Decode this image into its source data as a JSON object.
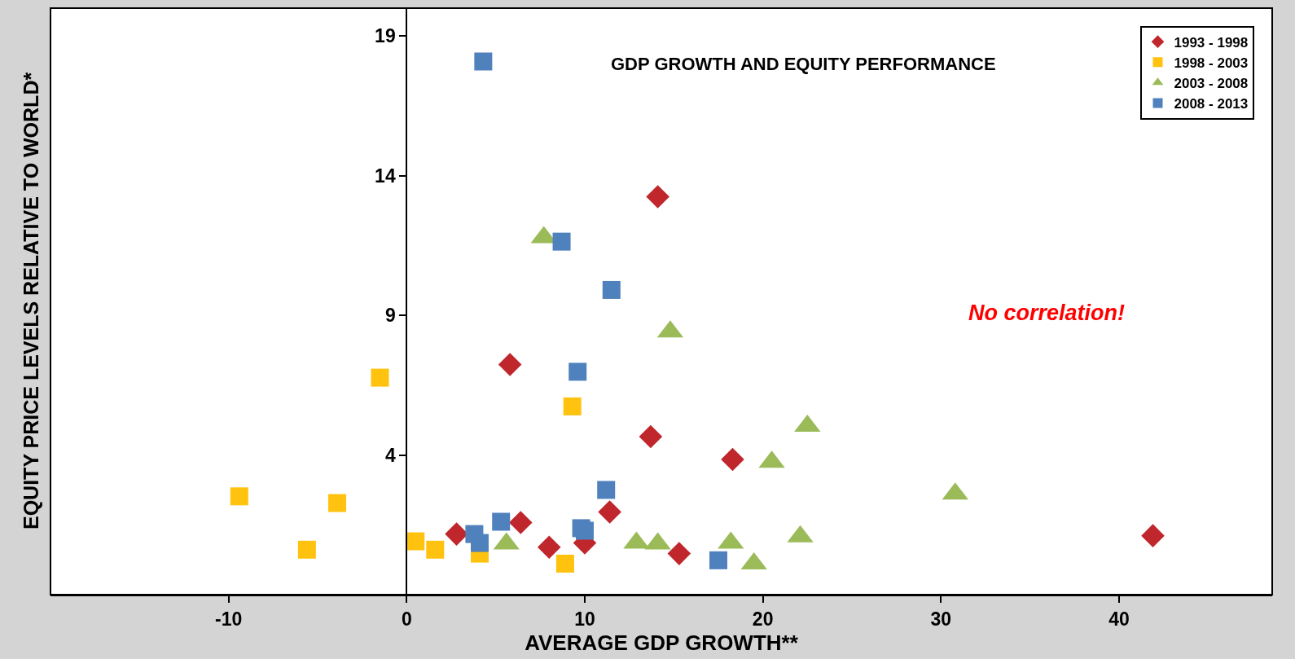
{
  "chart_data": {
    "type": "scatter",
    "title": "GDP GROWTH AND EQUITY PERFORMANCE",
    "xlabel": "AVERAGE GDP GROWTH**",
    "ylabel": "EQUITY PRICE LEVELS RELATIVE TO WORLD*",
    "xlim": [
      -20,
      48.6
    ],
    "ylim": [
      -1,
      20
    ],
    "xticks": [
      -10,
      0,
      10,
      20,
      30,
      40
    ],
    "yticks": [
      4,
      9,
      14,
      19
    ],
    "legend": "top right",
    "annotations": [
      "No correlation!"
    ],
    "series": [
      {
        "name": "1993 - 1998",
        "color": "#c0272d",
        "marker": "diamond",
        "x": [
          14.1,
          5.8,
          13.7,
          18.3,
          11.4,
          6.4,
          2.8,
          8.0,
          10.0,
          15.3,
          41.9
        ],
        "values": [
          13.25,
          7.24,
          4.66,
          3.84,
          1.96,
          1.58,
          1.17,
          0.7,
          0.85,
          0.47,
          1.11
        ]
      },
      {
        "name": "1998 - 2003",
        "color": "#ffc20e",
        "marker": "square",
        "x": [
          -1.5,
          9.3,
          -9.4,
          -3.9,
          -5.6,
          0.5,
          1.6,
          4.1,
          8.9
        ],
        "values": [
          6.77,
          5.74,
          2.52,
          2.28,
          0.61,
          0.91,
          0.61,
          0.47,
          0.11
        ]
      },
      {
        "name": "2003 - 2008",
        "color": "#9bbb59",
        "marker": "triangle",
        "x": [
          7.7,
          14.8,
          22.5,
          20.5,
          30.8,
          5.6,
          12.9,
          14.1,
          18.2,
          22.1,
          19.5
        ],
        "values": [
          11.79,
          8.41,
          5.04,
          3.75,
          2.61,
          0.82,
          0.85,
          0.82,
          0.85,
          1.08,
          0.11
        ]
      },
      {
        "name": "2008 - 2013",
        "color": "#4f81bd",
        "marker": "square",
        "x": [
          4.3,
          8.7,
          11.5,
          9.6,
          11.2,
          5.3,
          3.8,
          4.1,
          9.8,
          10.0,
          17.5
        ],
        "values": [
          18.09,
          11.64,
          9.91,
          6.98,
          2.75,
          1.61,
          1.17,
          0.85,
          1.38,
          1.29,
          0.23
        ]
      }
    ]
  }
}
